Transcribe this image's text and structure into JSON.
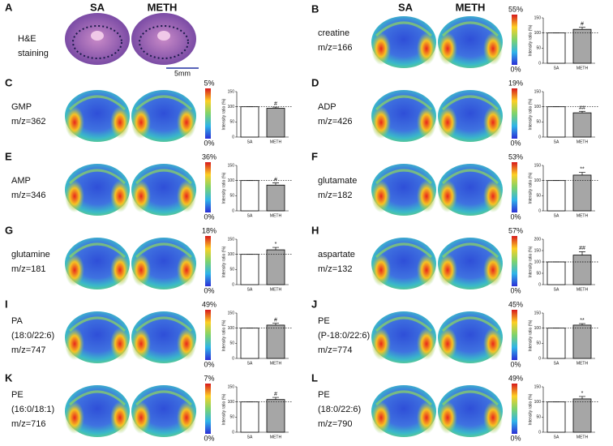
{
  "headers": [
    "SA",
    "METH",
    "SA",
    "METH"
  ],
  "panel_a": {
    "letter": "A",
    "lines": [
      "H&E",
      "staining"
    ],
    "scale": "5mm"
  },
  "panels": [
    {
      "letter": "B",
      "lines": [
        "creatine",
        "m/z=166"
      ],
      "colorbar": [
        "55%",
        "0%"
      ]
    },
    {
      "letter": "C",
      "lines": [
        "GMP",
        "m/z=362"
      ],
      "colorbar": [
        "5%",
        "0%"
      ]
    },
    {
      "letter": "D",
      "lines": [
        "ADP",
        "m/z=426"
      ],
      "colorbar": [
        "19%",
        "0%"
      ]
    },
    {
      "letter": "E",
      "lines": [
        "AMP",
        "m/z=346"
      ],
      "colorbar": [
        "36%",
        "0%"
      ]
    },
    {
      "letter": "F",
      "lines": [
        "glutamate",
        "m/z=182"
      ],
      "colorbar": [
        "53%",
        "0%"
      ]
    },
    {
      "letter": "G",
      "lines": [
        "glutamine",
        "m/z=181"
      ],
      "colorbar": [
        "18%",
        "0%"
      ]
    },
    {
      "letter": "H",
      "lines": [
        "aspartate",
        "m/z=132"
      ],
      "colorbar": [
        "57%",
        "0%"
      ]
    },
    {
      "letter": "I",
      "lines": [
        "PA",
        "(18:0/22:6)",
        "m/z=747"
      ],
      "colorbar": [
        "49%",
        "0%"
      ]
    },
    {
      "letter": "J",
      "lines": [
        "PE",
        "(P-18:0/22:6)",
        "m/z=774"
      ],
      "colorbar": [
        "45%",
        "0%"
      ]
    },
    {
      "letter": "K",
      "lines": [
        "PE",
        "(16:0/18:1)",
        "m/z=716"
      ],
      "colorbar": [
        "7%",
        "0%"
      ]
    },
    {
      "letter": "L",
      "lines": [
        "PE",
        "(18:0/22:6)",
        "m/z=790"
      ],
      "colorbar": [
        "49%",
        "0%"
      ]
    }
  ],
  "chart_data": [
    {
      "type": "bar",
      "categories": [
        "SA",
        "METH"
      ],
      "values": [
        100,
        112
      ],
      "errors": [
        0,
        7
      ],
      "ylabel": "Intensity ratio (%)",
      "ylim": [
        0,
        150
      ],
      "yticks": [
        0,
        50,
        100,
        150
      ],
      "reference": 100,
      "annotation": "#",
      "colors": [
        "#ffffff",
        "#a6a6a6"
      ]
    },
    {
      "type": "bar",
      "categories": [
        "SA",
        "METH"
      ],
      "values": [
        100,
        95
      ],
      "errors": [
        0,
        4
      ],
      "ylabel": "Intensity ratio (%)",
      "ylim": [
        0,
        150
      ],
      "yticks": [
        0,
        50,
        100,
        150
      ],
      "reference": 100,
      "annotation": "#",
      "colors": [
        "#ffffff",
        "#a6a6a6"
      ]
    },
    {
      "type": "bar",
      "categories": [
        "SA",
        "METH"
      ],
      "values": [
        100,
        80
      ],
      "errors": [
        0,
        5
      ],
      "ylabel": "Intensity ratio (%)",
      "ylim": [
        0,
        150
      ],
      "yticks": [
        0,
        50,
        100,
        150
      ],
      "reference": 100,
      "annotation": "##",
      "colors": [
        "#ffffff",
        "#a6a6a6"
      ]
    },
    {
      "type": "bar",
      "categories": [
        "SA",
        "METH"
      ],
      "values": [
        100,
        85
      ],
      "errors": [
        0,
        7
      ],
      "ylabel": "Intensity ratio (%)",
      "ylim": [
        0,
        150
      ],
      "yticks": [
        0,
        50,
        100,
        150
      ],
      "reference": 100,
      "annotation": "#",
      "colors": [
        "#ffffff",
        "#a6a6a6"
      ]
    },
    {
      "type": "bar",
      "categories": [
        "SA",
        "METH"
      ],
      "values": [
        100,
        118
      ],
      "errors": [
        0,
        9
      ],
      "ylabel": "Intensity ratio (%)",
      "ylim": [
        0,
        150
      ],
      "yticks": [
        0,
        50,
        100,
        150
      ],
      "reference": 100,
      "annotation": "**",
      "colors": [
        "#ffffff",
        "#a6a6a6"
      ]
    },
    {
      "type": "bar",
      "categories": [
        "SA",
        "METH"
      ],
      "values": [
        100,
        115
      ],
      "errors": [
        0,
        8
      ],
      "ylabel": "Intensity ratio (%)",
      "ylim": [
        0,
        150
      ],
      "yticks": [
        0,
        50,
        100,
        150
      ],
      "reference": 100,
      "annotation": "*",
      "colors": [
        "#ffffff",
        "#a6a6a6"
      ]
    },
    {
      "type": "bar",
      "categories": [
        "SA",
        "METH"
      ],
      "values": [
        100,
        130
      ],
      "errors": [
        0,
        15
      ],
      "ylabel": "Intensity ratio (%)",
      "ylim": [
        0,
        200
      ],
      "yticks": [
        0,
        50,
        100,
        150,
        200
      ],
      "reference": 100,
      "annotation": "##",
      "colors": [
        "#ffffff",
        "#a6a6a6"
      ]
    },
    {
      "type": "bar",
      "categories": [
        "SA",
        "METH"
      ],
      "values": [
        100,
        110
      ],
      "errors": [
        0,
        6
      ],
      "ylabel": "Intensity ratio (%)",
      "ylim": [
        0,
        150
      ],
      "yticks": [
        0,
        50,
        100,
        150
      ],
      "reference": 100,
      "annotation": "#",
      "colors": [
        "#ffffff",
        "#a6a6a6"
      ]
    },
    {
      "type": "bar",
      "categories": [
        "SA",
        "METH"
      ],
      "values": [
        100,
        110
      ],
      "errors": [
        0,
        5
      ],
      "ylabel": "Intensity ratio (%)",
      "ylim": [
        0,
        150
      ],
      "yticks": [
        0,
        50,
        100,
        150
      ],
      "reference": 100,
      "annotation": "**",
      "colors": [
        "#ffffff",
        "#a6a6a6"
      ]
    },
    {
      "type": "bar",
      "categories": [
        "SA",
        "METH"
      ],
      "values": [
        100,
        108
      ],
      "errors": [
        0,
        7
      ],
      "ylabel": "Intensity ratio (%)",
      "ylim": [
        0,
        150
      ],
      "yticks": [
        0,
        50,
        100,
        150
      ],
      "reference": 100,
      "annotation": "#",
      "colors": [
        "#ffffff",
        "#a6a6a6"
      ]
    },
    {
      "type": "bar",
      "categories": [
        "SA",
        "METH"
      ],
      "values": [
        100,
        110
      ],
      "errors": [
        0,
        8
      ],
      "ylabel": "Intensity ratio (%)",
      "ylim": [
        0,
        150
      ],
      "yticks": [
        0,
        50,
        100,
        150
      ],
      "reference": 100,
      "annotation": "*",
      "colors": [
        "#ffffff",
        "#a6a6a6"
      ]
    }
  ]
}
